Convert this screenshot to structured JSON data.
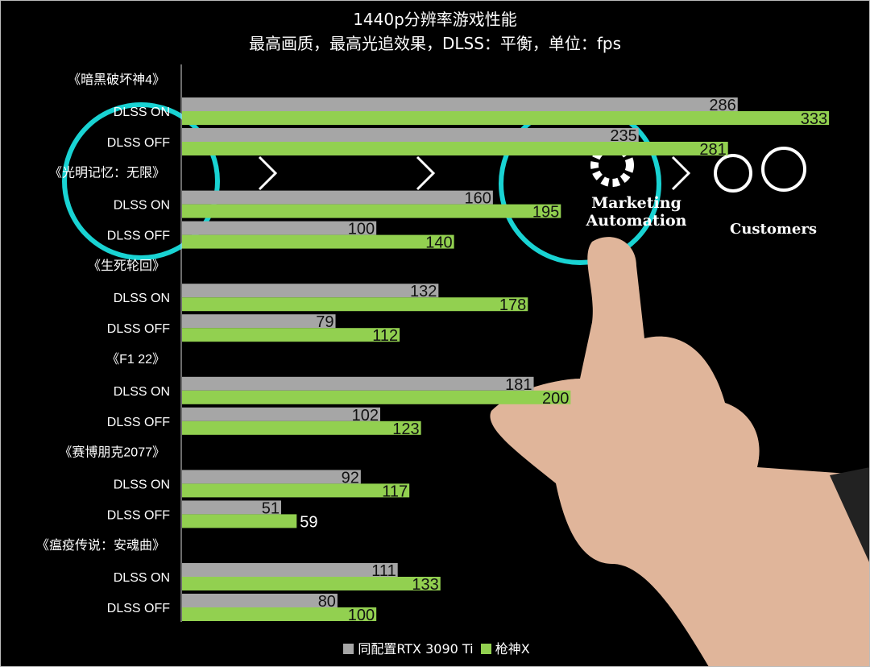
{
  "chart_data": {
    "type": "bar",
    "orientation": "horizontal",
    "title": "1440p分辨率游戏性能",
    "subtitle": "最高画质，最高光追效果，DLSS：平衡，单位：fps",
    "groups": [
      "《暗黑破坏神4》",
      "《光明记忆：无限》",
      "《生死轮回》",
      "《F1 22》",
      "《赛博朋克2077》",
      "《瘟疫传说：安魂曲》"
    ],
    "subcategories": [
      "DLSS ON",
      "DLSS OFF"
    ],
    "series": [
      {
        "name": "同配置RTX 3090 Ti",
        "color": "#a6a6a6",
        "values": [
          [
            286,
            235
          ],
          [
            160,
            100
          ],
          [
            132,
            79
          ],
          [
            181,
            102
          ],
          [
            92,
            51
          ],
          [
            111,
            80
          ]
        ]
      },
      {
        "name": "枪神X",
        "color": "#92d050",
        "values": [
          [
            333,
            281
          ],
          [
            195,
            140
          ],
          [
            178,
            112
          ],
          [
            200,
            123
          ],
          [
            117,
            59
          ],
          [
            133,
            100
          ]
        ]
      }
    ],
    "xlim": [
      0,
      340
    ],
    "grid": false,
    "legend_position": "bottom",
    "data_labels": true
  },
  "background": {
    "accent": "#19d3d3",
    "icon_text": [
      "Marketing",
      "Automation",
      "Customers"
    ]
  }
}
